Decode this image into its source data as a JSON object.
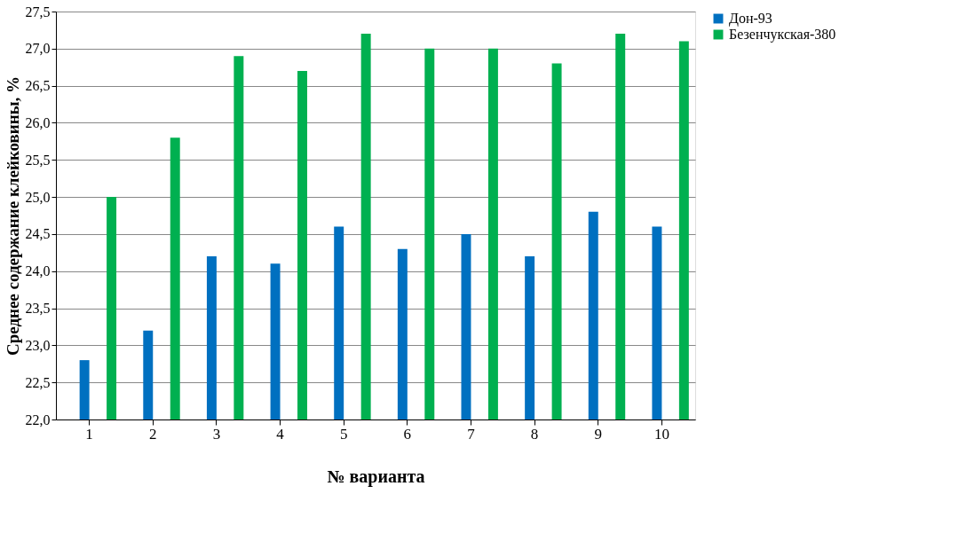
{
  "chart_data": {
    "type": "bar",
    "xlabel": "№ варианта",
    "ylabel": "Среднее содержание клейковины, %",
    "categories": [
      "1",
      "2",
      "3",
      "4",
      "5",
      "6",
      "7",
      "8",
      "9",
      "10"
    ],
    "series": [
      {
        "name": "Дон-93",
        "color": "#0070c0",
        "values": [
          22.8,
          23.2,
          24.2,
          24.1,
          24.6,
          24.3,
          24.5,
          24.2,
          24.8,
          24.6
        ]
      },
      {
        "name": "Безенчукская-380",
        "color": "#00b050",
        "values": [
          25.0,
          25.8,
          26.9,
          26.7,
          27.2,
          27.0,
          27.0,
          26.8,
          27.2,
          27.1
        ]
      }
    ],
    "ylim": [
      22,
      27.5
    ],
    "yticks": [
      {
        "value": 22,
        "label": "22,0"
      },
      {
        "value": 22.5,
        "label": "22,5"
      },
      {
        "value": 23,
        "label": "23,0"
      },
      {
        "value": 23.5,
        "label": "23,5"
      },
      {
        "value": 24,
        "label": "24,0"
      },
      {
        "value": 24.5,
        "label": "24,5"
      },
      {
        "value": 25,
        "label": "25,0"
      },
      {
        "value": 25.5,
        "label": "25,5"
      },
      {
        "value": 26,
        "label": "26,0"
      },
      {
        "value": 26.5,
        "label": "26,5"
      },
      {
        "value": 27,
        "label": "27,0"
      },
      {
        "value": 27.5,
        "label": "27,5"
      }
    ],
    "grid": "y",
    "legend": "right"
  }
}
